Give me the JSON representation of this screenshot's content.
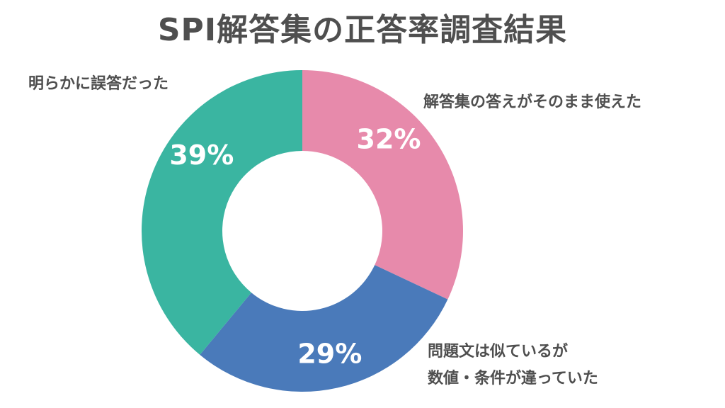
{
  "chart_data": {
    "type": "pie",
    "variant": "donut",
    "title": "SPI解答集の正答率調査結果",
    "categories": [
      "解答集の答えがそのまま使えた",
      "問題文は似ているが数値・条件が違っていた",
      "明らかに誤答だった"
    ],
    "values": [
      32,
      29,
      39
    ],
    "unit": "%",
    "colors": [
      "#e78aab",
      "#4a7aba",
      "#3ab5a1"
    ],
    "value_labels": [
      "32%",
      "29%",
      "39%"
    ],
    "legend": "none (direct labels)"
  },
  "labels": {
    "slice1": "解答集の答えがそのまま使えた",
    "slice2_line1": "問題文は似ているが",
    "slice2_line2": "数値・条件が違っていた",
    "slice3": "明らかに誤答だった"
  }
}
